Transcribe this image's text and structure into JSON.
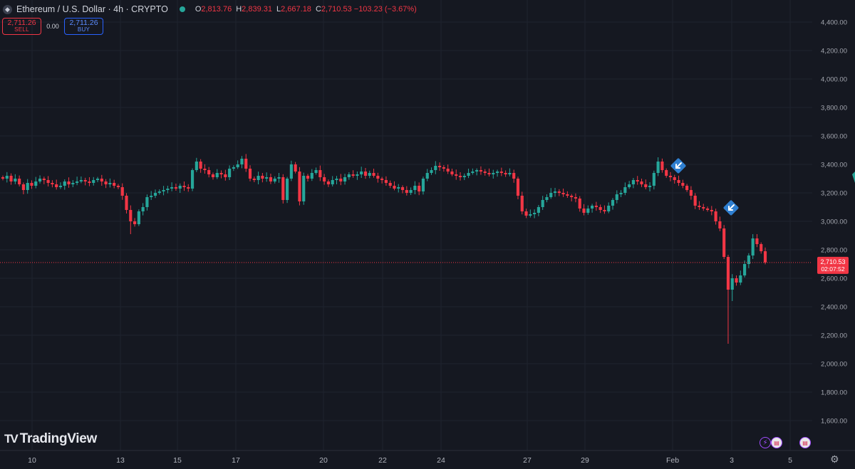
{
  "header": {
    "symbol_icon": "ethereum-icon",
    "title": "Ethereum / U.S. Dollar · 4h · CRYPTO",
    "ohlc": [
      {
        "k": "O",
        "v": "2,813.76"
      },
      {
        "k": "H",
        "v": "2,839.31"
      },
      {
        "k": "L",
        "v": "2,667.18"
      },
      {
        "k": "C",
        "v": "2,710.53 −103.23 (−3.67%)"
      }
    ]
  },
  "trade": {
    "sell_price": "2,711.26",
    "sell_label": "SELL",
    "spread": "0.00",
    "buy_price": "2,711.26",
    "buy_label": "BUY"
  },
  "watermark": "TradingView",
  "colors": {
    "up": "#26a69a",
    "down": "#f23645",
    "background": "#151821",
    "grid": "#1f232e",
    "marker": "#2f7fd0"
  },
  "chart_data": {
    "type": "candlestick",
    "title": "",
    "xlabel": "",
    "ylabel": "",
    "ylim": [
      1500,
      4500
    ],
    "y_ticks": [
      "1,600.00",
      "1,800.00",
      "2,000.00",
      "2,200.00",
      "2,400.00",
      "2,600.00",
      "2,800.00",
      "3,000.00",
      "3,200.00",
      "3,400.00",
      "3,600.00",
      "3,800.00",
      "4,000.00",
      "4,200.00",
      "4,400.00"
    ],
    "x_ticks": [
      "10",
      "13",
      "15",
      "17",
      "20",
      "22",
      "24",
      "27",
      "29",
      "Feb",
      "3",
      "5"
    ],
    "last_price": "2,710.53",
    "countdown": "02:07:52",
    "close_series": [
      3300,
      3320,
      3280,
      3300,
      3260,
      3220,
      3270,
      3250,
      3280,
      3300,
      3290,
      3270,
      3260,
      3240,
      3250,
      3280,
      3260,
      3270,
      3280,
      3290,
      3280,
      3270,
      3290,
      3300,
      3280,
      3260,
      3270,
      3250,
      3240,
      3180,
      3080,
      3000,
      2980,
      3070,
      3100,
      3170,
      3180,
      3200,
      3210,
      3220,
      3230,
      3240,
      3230,
      3250,
      3240,
      3230,
      3360,
      3420,
      3370,
      3360,
      3330,
      3310,
      3340,
      3330,
      3310,
      3370,
      3380,
      3400,
      3440,
      3370,
      3300,
      3290,
      3320,
      3300,
      3310,
      3280,
      3300,
      3310,
      3150,
      3300,
      3400,
      3350,
      3140,
      3320,
      3300,
      3340,
      3360,
      3310,
      3280,
      3260,
      3290,
      3300,
      3280,
      3310,
      3330,
      3320,
      3330,
      3350,
      3320,
      3340,
      3320,
      3300,
      3290,
      3270,
      3250,
      3230,
      3240,
      3220,
      3200,
      3220,
      3250,
      3210,
      3300,
      3340,
      3360,
      3390,
      3380,
      3370,
      3350,
      3330,
      3320,
      3310,
      3320,
      3340,
      3350,
      3360,
      3350,
      3340,
      3330,
      3340,
      3350,
      3340,
      3330,
      3340,
      3300,
      3180,
      3070,
      3040,
      3050,
      3060,
      3100,
      3150,
      3170,
      3200,
      3210,
      3200,
      3190,
      3180,
      3170,
      3160,
      3090,
      3060,
      3090,
      3110,
      3100,
      3080,
      3070,
      3110,
      3150,
      3190,
      3200,
      3240,
      3260,
      3290,
      3280,
      3260,
      3240,
      3250,
      3340,
      3420,
      3360,
      3320,
      3310,
      3290,
      3270,
      3250,
      3220,
      3180,
      3110,
      3100,
      3090,
      3080,
      3070,
      3000,
      2950,
      2750,
      2520,
      2600,
      2570,
      2620,
      2700,
      2760,
      2880,
      2840,
      2790,
      2711
    ]
  },
  "event_icons": [
    "economic-event-flag-icon",
    "economic-event-flag-icon"
  ],
  "signal_markers": [
    "down-arrow-marker-icon",
    "down-arrow-marker-icon"
  ],
  "settings_icon": "gear-icon"
}
